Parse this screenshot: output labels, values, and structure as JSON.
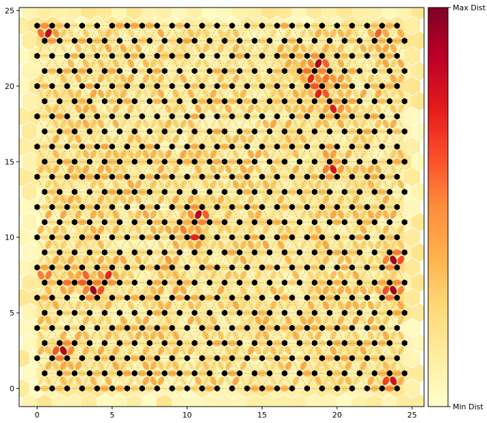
{
  "chart_data": {
    "type": "heatmap",
    "title": "",
    "xlabel": "",
    "ylabel": "",
    "grid": "hexagonal",
    "grid_size": [
      25,
      25
    ],
    "xlim": [
      -1.2,
      25.8
    ],
    "ylim": [
      -1.2,
      25.2
    ],
    "xticks": [
      0,
      5,
      10,
      15,
      20,
      25
    ],
    "yticks": [
      0,
      5,
      10,
      15,
      20,
      25
    ],
    "xtick_labels": [
      "0",
      "5",
      "10",
      "15",
      "20",
      "25"
    ],
    "ytick_labels": [
      "0",
      "5",
      "10",
      "15",
      "20",
      "25"
    ],
    "node_color": "#000000",
    "edge_color": "#666666",
    "colormap": [
      "#ffffcc",
      "#ffeda0",
      "#fed976",
      "#feb24c",
      "#fd8d3c",
      "#fc4e2a",
      "#e31a1c",
      "#bd0026",
      "#800026"
    ],
    "colorbar": {
      "top_label": "Max Dist",
      "bottom_label": "Min Dist"
    },
    "hotspots": [
      {
        "x": 1.7,
        "y": 2.5,
        "v": 0.92
      },
      {
        "x": 3.8,
        "y": 6.5,
        "v": 0.95
      },
      {
        "x": 3.2,
        "y": 7.2,
        "v": 0.7
      },
      {
        "x": 4.7,
        "y": 7.4,
        "v": 0.75
      },
      {
        "x": 2.2,
        "y": 7.0,
        "v": 0.6
      },
      {
        "x": 0.5,
        "y": 7.5,
        "v": 0.6
      },
      {
        "x": 10.8,
        "y": 11.5,
        "v": 0.9
      },
      {
        "x": 10.6,
        "y": 10.0,
        "v": 0.75
      },
      {
        "x": 9.8,
        "y": 10.6,
        "v": 0.55
      },
      {
        "x": 8.8,
        "y": 8.2,
        "v": 0.55
      },
      {
        "x": 18.8,
        "y": 21.5,
        "v": 0.9
      },
      {
        "x": 18.9,
        "y": 19.7,
        "v": 0.85
      },
      {
        "x": 18.3,
        "y": 20.3,
        "v": 0.8
      },
      {
        "x": 17.7,
        "y": 21.0,
        "v": 0.65
      },
      {
        "x": 19.4,
        "y": 20.6,
        "v": 0.6
      },
      {
        "x": 20.3,
        "y": 20.3,
        "v": 0.5
      },
      {
        "x": 19.8,
        "y": 18.5,
        "v": 0.75
      },
      {
        "x": 19.7,
        "y": 14.5,
        "v": 0.8
      },
      {
        "x": 19.5,
        "y": 15.6,
        "v": 0.5
      },
      {
        "x": 23.8,
        "y": 8.5,
        "v": 0.95
      },
      {
        "x": 23.7,
        "y": 6.5,
        "v": 0.95
      },
      {
        "x": 23.6,
        "y": 0.5,
        "v": 0.85
      },
      {
        "x": 0.7,
        "y": 23.5,
        "v": 0.85
      },
      {
        "x": 22.8,
        "y": 23.5,
        "v": 0.6
      }
    ]
  }
}
